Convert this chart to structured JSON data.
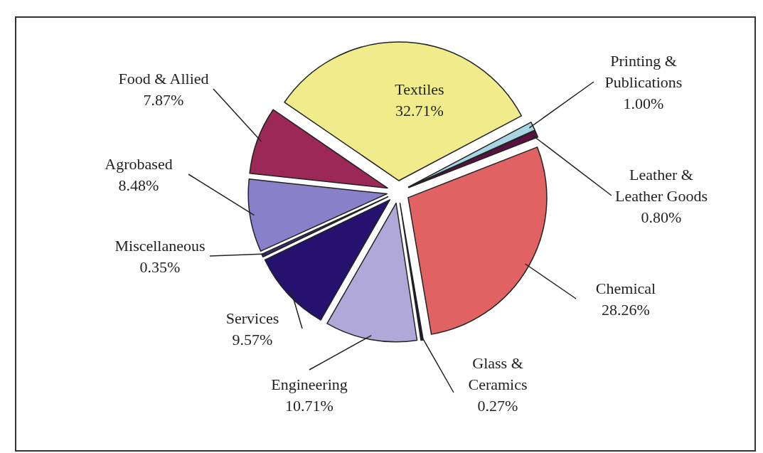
{
  "chart_data": {
    "type": "pie",
    "categories": [
      "Textiles",
      "Printing & Publications",
      "Leather & Leather Goods",
      "Chemical",
      "Glass & Ceramics",
      "Engineering",
      "Services",
      "Miscellaneous",
      "Agrobased",
      "Food & Allied"
    ],
    "values": [
      32.71,
      1.0,
      0.8,
      28.26,
      0.27,
      10.71,
      9.57,
      0.35,
      8.48,
      7.87
    ],
    "value_labels": [
      "32.71%",
      "1.00%",
      "0.80%",
      "28.26%",
      "0.27%",
      "10.71%",
      "9.57%",
      "0.35%",
      "8.48%",
      "7.87%"
    ],
    "colors": [
      "#f0ec8c",
      "#a8d4e4",
      "#5a1040",
      "#e06262",
      "#181830",
      "#b0a8d8",
      "#24126e",
      "#3a2a70",
      "#8880c8",
      "#9c2858"
    ]
  }
}
